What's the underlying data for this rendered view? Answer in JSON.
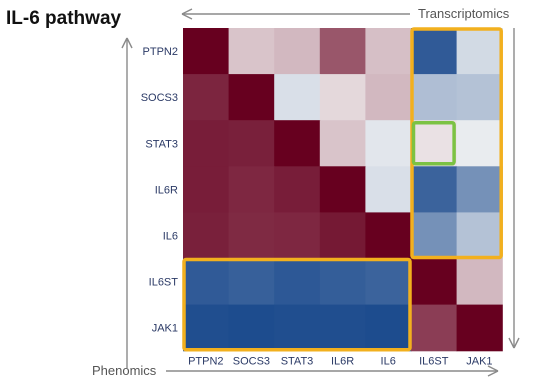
{
  "chart_data": {
    "type": "heatmap",
    "title": "IL-6 pathway",
    "top_arrow_label": "Transcriptomics",
    "bottom_arrow_label": "Phenomics",
    "row_labels": [
      "PTPN2",
      "SOCS3",
      "STAT3",
      "IL6R",
      "IL6",
      "IL6ST",
      "JAK1"
    ],
    "col_labels": [
      "PTPN2",
      "SOCS3",
      "STAT3",
      "IL6R",
      "IL6",
      "IL6ST",
      "JAK1"
    ],
    "value_range": [
      -1,
      1
    ],
    "matrix": [
      [
        1.0,
        0.2,
        0.25,
        0.65,
        0.22,
        -0.85,
        -0.15
      ],
      [
        0.85,
        1.0,
        -0.12,
        0.12,
        0.25,
        -0.3,
        -0.28
      ],
      [
        0.88,
        0.87,
        1.0,
        0.2,
        -0.08,
        0.08,
        -0.05
      ],
      [
        0.88,
        0.84,
        0.88,
        1.0,
        -0.12,
        -0.8,
        -0.55
      ],
      [
        0.87,
        0.83,
        0.84,
        0.9,
        1.0,
        -0.55,
        -0.28
      ],
      [
        -0.85,
        -0.82,
        -0.86,
        -0.83,
        -0.8,
        1.0,
        0.25
      ],
      [
        -0.92,
        -0.93,
        -0.92,
        -0.92,
        -0.93,
        0.75,
        1.0
      ]
    ],
    "colors": {
      "negative": "#0d3f86",
      "neutral": "#f5f5f5",
      "positive": "#67001f",
      "highlight_yellow": "#f2b01e",
      "highlight_green": "#7cc243",
      "arrow": "#8a8a8a"
    }
  }
}
